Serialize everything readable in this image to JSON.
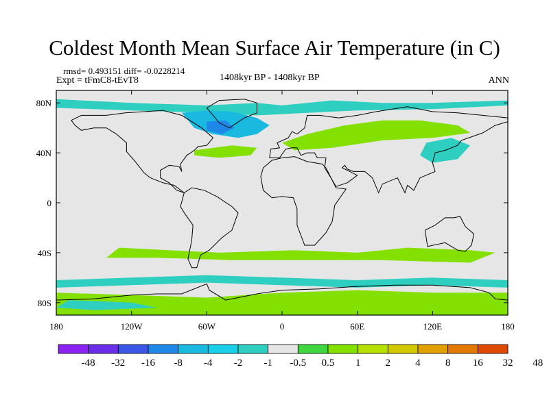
{
  "figure": {
    "title": "Coldest Month Mean Surface Air Temperature (in C)",
    "stats": "rmsd= 0.493151 diff= -0.0228214",
    "experiment": "Expt = tFmC8-tEvT8",
    "period": "1408kyr BP - 1408kyr BP",
    "season": "ANN"
  },
  "map": {
    "projection": "cylindrical equidistant",
    "lon_range": [
      -180,
      180
    ],
    "lat_range": [
      -90,
      90
    ],
    "x_ticks": [
      {
        "lon": -180,
        "label": "180"
      },
      {
        "lon": -120,
        "label": "120W"
      },
      {
        "lon": -60,
        "label": "60W"
      },
      {
        "lon": 0,
        "label": "0"
      },
      {
        "lon": 60,
        "label": "60E"
      },
      {
        "lon": 120,
        "label": "120E"
      },
      {
        "lon": 180,
        "label": "180"
      }
    ],
    "y_ticks": [
      {
        "lat": 80,
        "label": "80N"
      },
      {
        "lat": 40,
        "label": "40N"
      },
      {
        "lat": 0,
        "label": "0"
      },
      {
        "lat": -40,
        "label": "40S"
      },
      {
        "lat": -80,
        "label": "80S"
      }
    ],
    "background_color": "#e6e6e6",
    "anomaly_regions": [
      {
        "name": "arctic-band",
        "color": "#2ecfc0",
        "points": [
          [
            -180,
            83
          ],
          [
            -120,
            80
          ],
          [
            -60,
            78
          ],
          [
            -20,
            80
          ],
          [
            0,
            78
          ],
          [
            40,
            82
          ],
          [
            80,
            80
          ],
          [
            120,
            80
          ],
          [
            180,
            82
          ],
          [
            180,
            78
          ],
          [
            120,
            75
          ],
          [
            60,
            74
          ],
          [
            20,
            72
          ],
          [
            -20,
            70
          ],
          [
            -60,
            72
          ],
          [
            -120,
            74
          ],
          [
            -180,
            76
          ]
        ]
      },
      {
        "name": "north-atlantic-cooling",
        "color": "#1ab9e0",
        "points": [
          [
            -80,
            72
          ],
          [
            -60,
            74
          ],
          [
            -40,
            73
          ],
          [
            -20,
            68
          ],
          [
            -10,
            62
          ],
          [
            -20,
            55
          ],
          [
            -35,
            52
          ],
          [
            -55,
            55
          ],
          [
            -70,
            60
          ]
        ]
      },
      {
        "name": "labrador-cooling-core",
        "color": "#1e87e8",
        "points": [
          [
            -60,
            65
          ],
          [
            -45,
            66
          ],
          [
            -38,
            60
          ],
          [
            -48,
            55
          ],
          [
            -60,
            58
          ]
        ]
      },
      {
        "name": "atlantic-band-40n",
        "color": "#84e000",
        "points": [
          [
            -70,
            42
          ],
          [
            -40,
            46
          ],
          [
            -20,
            44
          ],
          [
            -25,
            38
          ],
          [
            -50,
            36
          ],
          [
            -70,
            38
          ]
        ]
      },
      {
        "name": "eurasia-warming",
        "color": "#84e000",
        "points": [
          [
            0,
            48
          ],
          [
            20,
            55
          ],
          [
            50,
            62
          ],
          [
            80,
            66
          ],
          [
            110,
            66
          ],
          [
            140,
            62
          ],
          [
            150,
            56
          ],
          [
            120,
            52
          ],
          [
            80,
            50
          ],
          [
            40,
            44
          ],
          [
            10,
            42
          ]
        ]
      },
      {
        "name": "east-asia-cooling",
        "color": "#2ecfc0",
        "points": [
          [
            115,
            48
          ],
          [
            135,
            52
          ],
          [
            150,
            46
          ],
          [
            140,
            35
          ],
          [
            120,
            32
          ],
          [
            110,
            38
          ]
        ]
      },
      {
        "name": "southern-ocean-40s",
        "color": "#84e000",
        "points": [
          [
            -130,
            -36
          ],
          [
            -90,
            -38
          ],
          [
            -50,
            -40
          ],
          [
            10,
            -38
          ],
          [
            60,
            -40
          ],
          [
            100,
            -36
          ],
          [
            150,
            -38
          ],
          [
            170,
            -40
          ],
          [
            150,
            -48
          ],
          [
            80,
            -46
          ],
          [
            20,
            -46
          ],
          [
            -40,
            -46
          ],
          [
            -100,
            -44
          ],
          [
            -140,
            -44
          ]
        ]
      },
      {
        "name": "southern-ocean-60s",
        "color": "#2ecfc0",
        "points": [
          [
            -180,
            -62
          ],
          [
            -120,
            -60
          ],
          [
            -60,
            -58
          ],
          [
            0,
            -60
          ],
          [
            60,
            -62
          ],
          [
            120,
            -60
          ],
          [
            180,
            -62
          ],
          [
            180,
            -68
          ],
          [
            120,
            -66
          ],
          [
            60,
            -68
          ],
          [
            0,
            -66
          ],
          [
            -60,
            -64
          ],
          [
            -120,
            -66
          ],
          [
            -180,
            -68
          ]
        ]
      },
      {
        "name": "antarctic-band",
        "color": "#84e000",
        "points": [
          [
            -180,
            -72
          ],
          [
            -120,
            -74
          ],
          [
            -60,
            -76
          ],
          [
            0,
            -72
          ],
          [
            60,
            -70
          ],
          [
            120,
            -72
          ],
          [
            180,
            -72
          ],
          [
            180,
            -90
          ],
          [
            -180,
            -90
          ]
        ]
      },
      {
        "name": "antarctic-cooling",
        "color": "#2ecfc0",
        "points": [
          [
            -170,
            -78
          ],
          [
            -120,
            -80
          ],
          [
            -100,
            -84
          ],
          [
            -150,
            -86
          ],
          [
            -180,
            -84
          ]
        ]
      }
    ],
    "coastlines": [
      {
        "name": "north-america",
        "points": [
          [
            -168,
            66
          ],
          [
            -160,
            70
          ],
          [
            -140,
            70
          ],
          [
            -125,
            72
          ],
          [
            -95,
            74
          ],
          [
            -80,
            70
          ],
          [
            -64,
            60
          ],
          [
            -55,
            52
          ],
          [
            -60,
            46
          ],
          [
            -67,
            45
          ],
          [
            -70,
            42
          ],
          [
            -76,
            38
          ],
          [
            -81,
            31
          ],
          [
            -80,
            25
          ],
          [
            -82,
            29
          ],
          [
            -90,
            30
          ],
          [
            -97,
            26
          ],
          [
            -97,
            20
          ],
          [
            -90,
            16
          ],
          [
            -84,
            10
          ],
          [
            -78,
            8
          ],
          [
            -86,
            14
          ],
          [
            -95,
            16
          ],
          [
            -105,
            20
          ],
          [
            -110,
            24
          ],
          [
            -117,
            33
          ],
          [
            -124,
            41
          ],
          [
            -124,
            48
          ],
          [
            -132,
            55
          ],
          [
            -140,
            60
          ],
          [
            -150,
            60
          ],
          [
            -160,
            58
          ],
          [
            -165,
            62
          ],
          [
            -168,
            66
          ]
        ]
      },
      {
        "name": "greenland",
        "points": [
          [
            -50,
            82
          ],
          [
            -30,
            83
          ],
          [
            -20,
            80
          ],
          [
            -20,
            72
          ],
          [
            -30,
            68
          ],
          [
            -42,
            60
          ],
          [
            -50,
            64
          ],
          [
            -55,
            70
          ],
          [
            -60,
            76
          ],
          [
            -50,
            82
          ]
        ]
      },
      {
        "name": "south-america",
        "points": [
          [
            -78,
            8
          ],
          [
            -72,
            12
          ],
          [
            -62,
            10
          ],
          [
            -52,
            5
          ],
          [
            -40,
            -3
          ],
          [
            -35,
            -8
          ],
          [
            -40,
            -22
          ],
          [
            -48,
            -28
          ],
          [
            -58,
            -38
          ],
          [
            -65,
            -42
          ],
          [
            -68,
            -52
          ],
          [
            -72,
            -52
          ],
          [
            -75,
            -45
          ],
          [
            -72,
            -30
          ],
          [
            -71,
            -18
          ],
          [
            -78,
            -8
          ],
          [
            -81,
            -3
          ],
          [
            -78,
            8
          ]
        ]
      },
      {
        "name": "africa",
        "points": [
          [
            -17,
            21
          ],
          [
            -15,
            28
          ],
          [
            -8,
            34
          ],
          [
            0,
            36
          ],
          [
            10,
            37
          ],
          [
            20,
            33
          ],
          [
            32,
            31
          ],
          [
            35,
            28
          ],
          [
            43,
            12
          ],
          [
            51,
            11
          ],
          [
            42,
            -2
          ],
          [
            40,
            -15
          ],
          [
            35,
            -24
          ],
          [
            26,
            -34
          ],
          [
            18,
            -34
          ],
          [
            12,
            -18
          ],
          [
            12,
            -5
          ],
          [
            9,
            4
          ],
          [
            0,
            5
          ],
          [
            -8,
            4
          ],
          [
            -15,
            10
          ],
          [
            -17,
            21
          ]
        ]
      },
      {
        "name": "eurasia",
        "points": [
          [
            -10,
            36
          ],
          [
            -9,
            43
          ],
          [
            -2,
            44
          ],
          [
            -4,
            48
          ],
          [
            5,
            52
          ],
          [
            8,
            57
          ],
          [
            12,
            55
          ],
          [
            18,
            60
          ],
          [
            20,
            70
          ],
          [
            30,
            70
          ],
          [
            45,
            68
          ],
          [
            60,
            70
          ],
          [
            75,
            73
          ],
          [
            100,
            77
          ],
          [
            120,
            73
          ],
          [
            140,
            72
          ],
          [
            160,
            70
          ],
          [
            180,
            68
          ],
          [
            180,
            65
          ],
          [
            170,
            62
          ],
          [
            160,
            56
          ],
          [
            143,
            50
          ],
          [
            140,
            46
          ],
          [
            130,
            42
          ],
          [
            122,
            40
          ],
          [
            120,
            32
          ],
          [
            122,
            25
          ],
          [
            110,
            20
          ],
          [
            105,
            10
          ],
          [
            100,
            14
          ],
          [
            98,
            8
          ],
          [
            92,
            20
          ],
          [
            80,
            15
          ],
          [
            77,
            8
          ],
          [
            72,
            20
          ],
          [
            66,
            25
          ],
          [
            57,
            25
          ],
          [
            52,
            27
          ],
          [
            50,
            30
          ],
          [
            48,
            28
          ],
          [
            56,
            24
          ],
          [
            60,
            22
          ],
          [
            52,
            16
          ],
          [
            43,
            13
          ],
          [
            39,
            20
          ],
          [
            34,
            28
          ],
          [
            35,
            36
          ],
          [
            28,
            36
          ],
          [
            26,
            40
          ],
          [
            20,
            40
          ],
          [
            15,
            38
          ],
          [
            12,
            44
          ],
          [
            8,
            44
          ],
          [
            3,
            43
          ],
          [
            -2,
            36
          ],
          [
            -10,
            36
          ]
        ]
      },
      {
        "name": "australia",
        "points": [
          [
            114,
            -22
          ],
          [
            122,
            -18
          ],
          [
            130,
            -12
          ],
          [
            137,
            -12
          ],
          [
            142,
            -11
          ],
          [
            146,
            -19
          ],
          [
            153,
            -25
          ],
          [
            151,
            -34
          ],
          [
            146,
            -39
          ],
          [
            140,
            -38
          ],
          [
            135,
            -35
          ],
          [
            130,
            -32
          ],
          [
            116,
            -35
          ],
          [
            114,
            -22
          ]
        ]
      },
      {
        "name": "antarctica",
        "points": [
          [
            -180,
            -78
          ],
          [
            -150,
            -77
          ],
          [
            -120,
            -74
          ],
          [
            -100,
            -73
          ],
          [
            -80,
            -73
          ],
          [
            -60,
            -65
          ],
          [
            -58,
            -70
          ],
          [
            -45,
            -78
          ],
          [
            -20,
            -73
          ],
          [
            0,
            -70
          ],
          [
            30,
            -69
          ],
          [
            60,
            -67
          ],
          [
            90,
            -66
          ],
          [
            120,
            -66
          ],
          [
            150,
            -68
          ],
          [
            165,
            -72
          ],
          [
            170,
            -77
          ],
          [
            180,
            -78
          ]
        ]
      }
    ],
    "colorbar": {
      "colors": [
        "#8c22f0",
        "#6a2ee8",
        "#3a56e4",
        "#1e87e8",
        "#1ab9e0",
        "#18d0e8",
        "#2ecfc0",
        "#e6e6e6",
        "#40d640",
        "#84e000",
        "#b6e000",
        "#d2c800",
        "#e0a000",
        "#e07a00",
        "#e04a00"
      ],
      "labels": [
        "-48",
        "-32",
        "-16",
        "-8",
        "-4",
        "-2",
        "-1",
        "-0.5",
        "0.5",
        "1",
        "2",
        "4",
        "8",
        "16",
        "32",
        "48"
      ]
    }
  }
}
